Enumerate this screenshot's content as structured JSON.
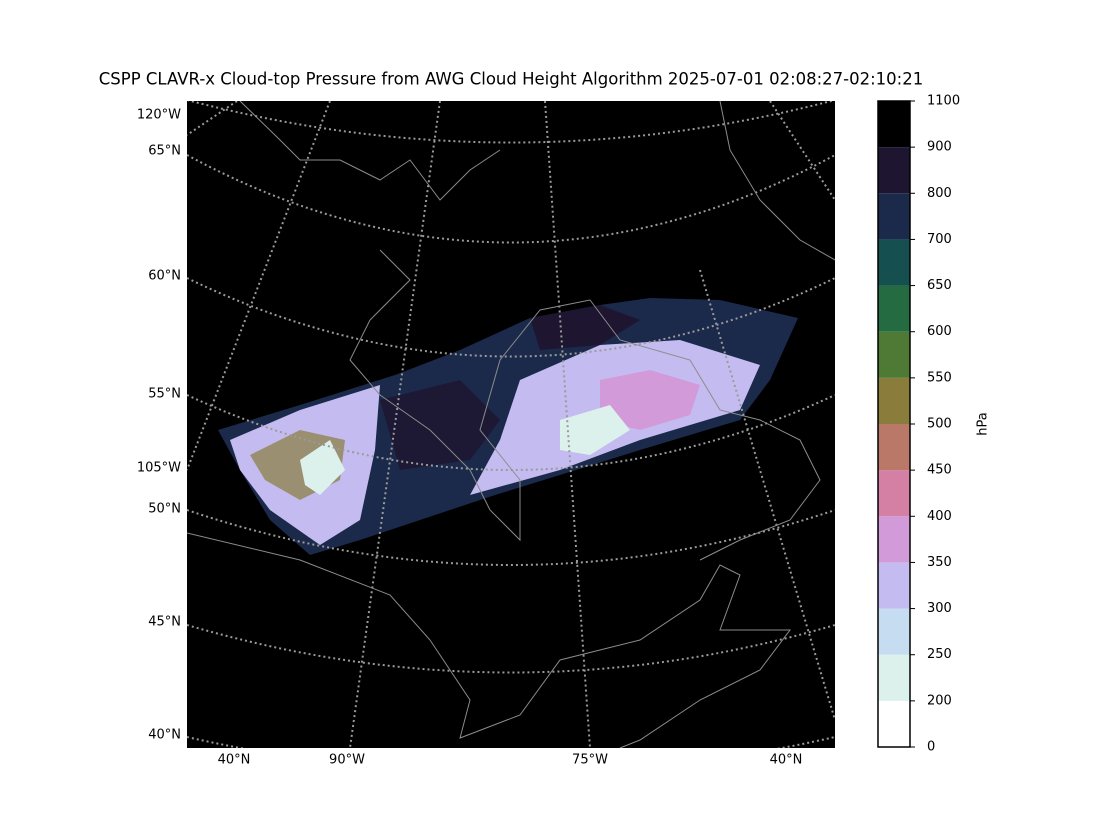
{
  "title": "CSPP CLAVR-x Cloud-top Pressure from AWG Cloud Height Algorithm 2025-07-01 02:08:27-02:10:21",
  "map": {
    "left_labels": [
      "120°W",
      "65°N",
      "60°N",
      "55°N",
      "105°W",
      "50°N",
      "45°N",
      "40°N"
    ],
    "bottom_labels": [
      "40°N",
      "90°W",
      "75°W",
      "40°N"
    ]
  },
  "colorbar": {
    "label": "hPa",
    "ticks": [
      0,
      200,
      250,
      300,
      350,
      400,
      450,
      500,
      550,
      600,
      650,
      700,
      800,
      900,
      1100
    ],
    "colors": [
      "#ffffff",
      "#dcf1ec",
      "#c6dcf0",
      "#c4bcf0",
      "#d29ad8",
      "#d47fa4",
      "#b97868",
      "#8a7c3a",
      "#4f7a35",
      "#246b42",
      "#164f50",
      "#1b2a4a",
      "#1e1530",
      "#000000"
    ]
  }
}
